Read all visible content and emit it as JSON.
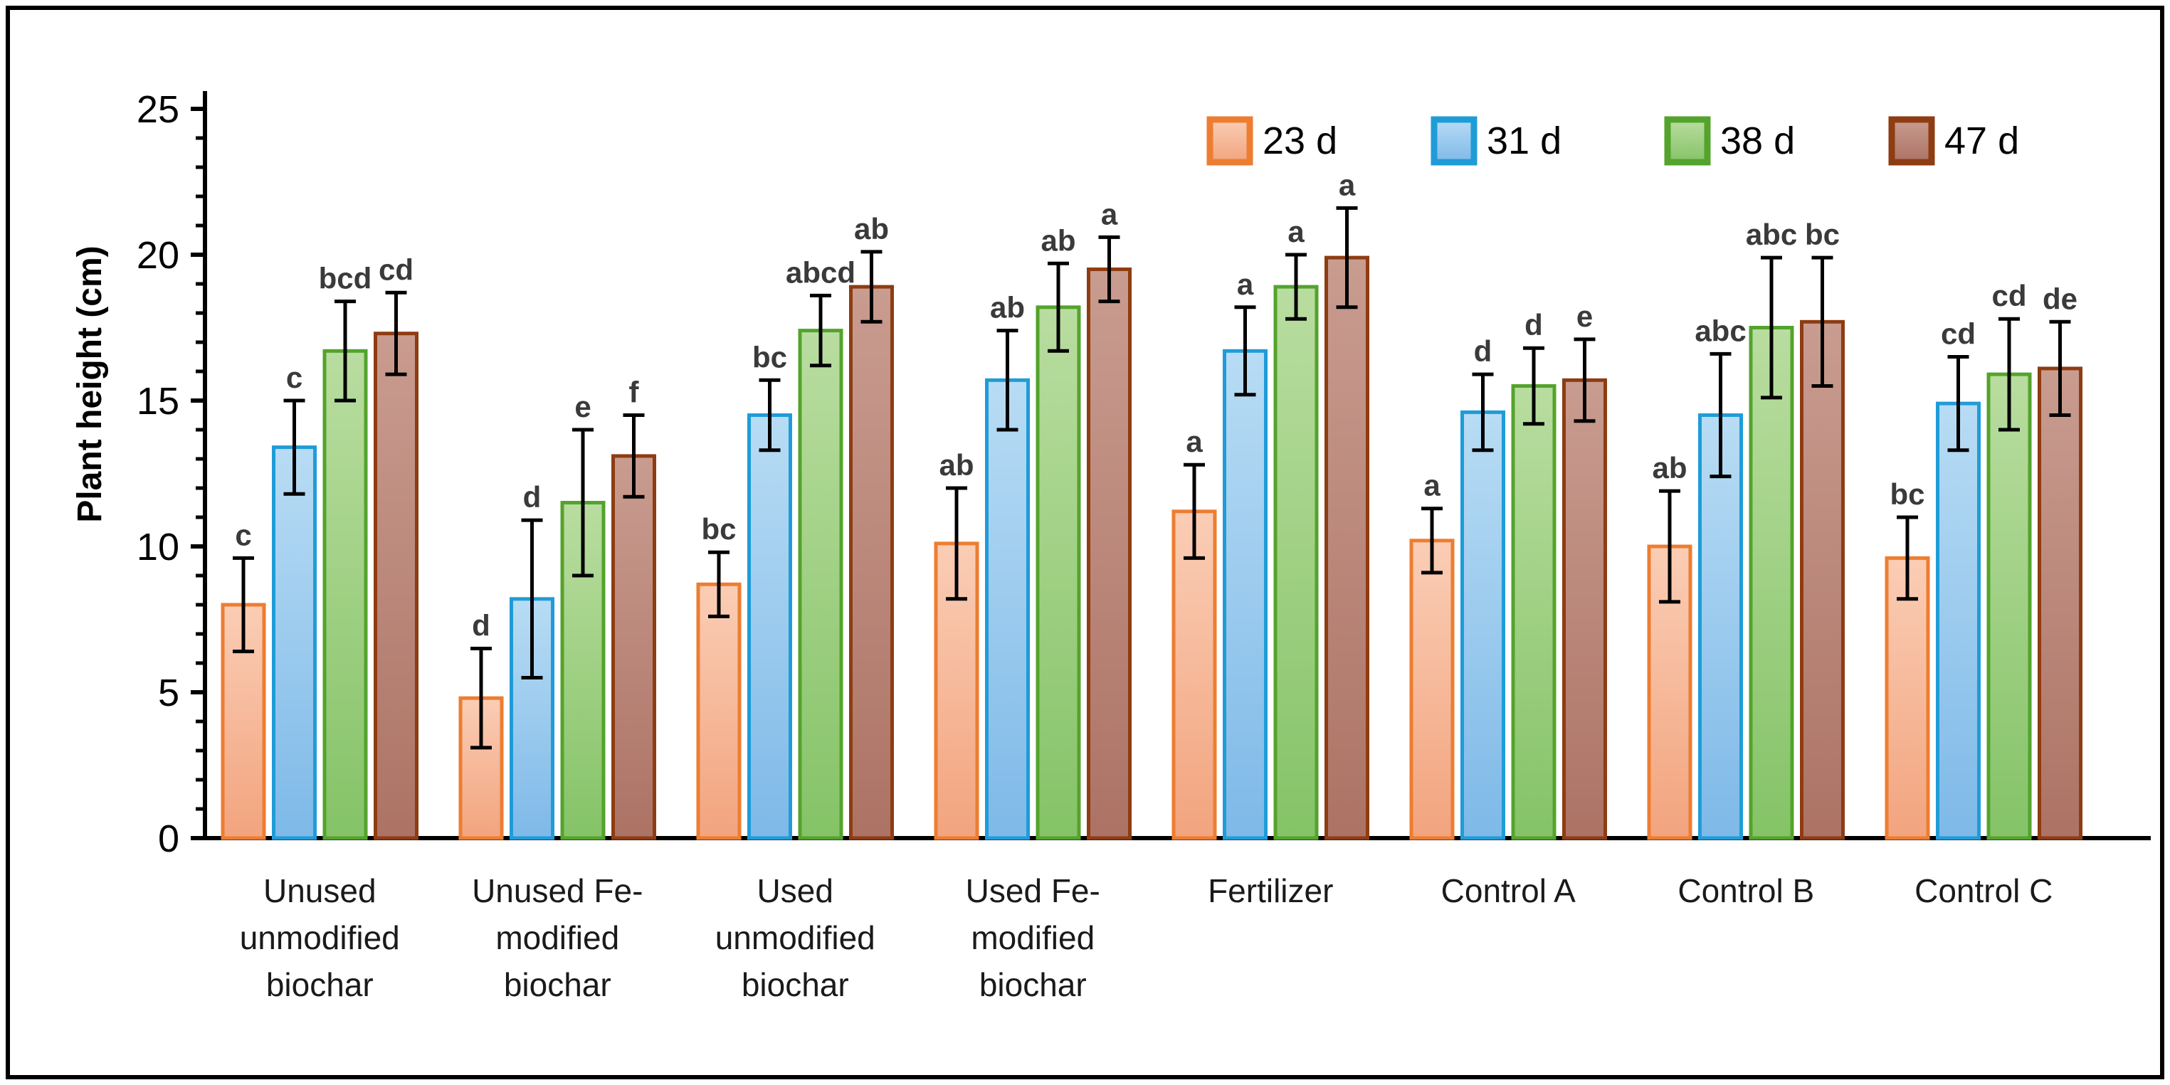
{
  "figure": {
    "background_color": "#ffffff",
    "frame_color": "#000000"
  },
  "chart_data": {
    "type": "bar",
    "title": "",
    "xlabel": "",
    "ylabel": "Plant height (cm)",
    "ylim": [
      0,
      25
    ],
    "yticks": [
      0,
      5,
      10,
      15,
      20,
      25
    ],
    "minor_tick_step": 1,
    "grid": false,
    "legend_position": "top-right",
    "error_bars": true,
    "categories": [
      "Unused unmodified biochar",
      "Unused Fe-modified biochar",
      "Used unmodified biochar",
      "Used Fe-modified biochar",
      "Fertilizer",
      "Control A",
      "Control B",
      "Control C"
    ],
    "categories_display": [
      [
        "Unused",
        "unmodified",
        "biochar"
      ],
      [
        "Unused Fe-",
        "modified",
        "biochar"
      ],
      [
        "Used",
        "unmodified",
        "biochar"
      ],
      [
        "Used Fe-",
        "modified",
        "biochar"
      ],
      [
        "Fertilizer"
      ],
      [
        "Control A"
      ],
      [
        "Control B"
      ],
      [
        "Control C"
      ]
    ],
    "series": [
      {
        "name": "23 d",
        "color": "#ED7D31",
        "fill_top": "#FACDB5",
        "fill_bottom": "#F2A47E",
        "values": [
          8.0,
          4.8,
          8.7,
          10.1,
          11.2,
          10.2,
          10.0,
          9.6
        ],
        "errors": [
          1.6,
          1.7,
          1.1,
          1.9,
          1.6,
          1.1,
          1.9,
          1.4
        ],
        "letters": [
          "c",
          "d",
          "bc",
          "ab",
          "a",
          "a",
          "ab",
          "bc"
        ]
      },
      {
        "name": "31 d",
        "color": "#1F9CD8",
        "fill_top": "#B8DCF4",
        "fill_bottom": "#7EB9E8",
        "values": [
          13.4,
          8.2,
          14.5,
          15.7,
          16.7,
          14.6,
          14.5,
          14.9
        ],
        "errors": [
          1.6,
          2.7,
          1.2,
          1.7,
          1.5,
          1.3,
          2.1,
          1.6
        ],
        "letters": [
          "c",
          "d",
          "bc",
          "ab",
          "a",
          "d",
          "abc",
          "cd"
        ]
      },
      {
        "name": "38 d",
        "color": "#54A32C",
        "fill_top": "#B9DDA0",
        "fill_bottom": "#85C367",
        "values": [
          16.7,
          11.5,
          17.4,
          18.2,
          18.9,
          15.5,
          17.5,
          15.9
        ],
        "errors": [
          1.7,
          2.5,
          1.2,
          1.5,
          1.1,
          1.3,
          2.4,
          1.9
        ],
        "letters": [
          "bcd",
          "e",
          "abcd",
          "ab",
          "a",
          "d",
          "abc",
          "cd"
        ]
      },
      {
        "name": "47 d",
        "color": "#8E3C12",
        "fill_top": "#C99C90",
        "fill_bottom": "#AC7365",
        "values": [
          17.3,
          13.1,
          18.9,
          19.5,
          19.9,
          15.7,
          17.7,
          16.1
        ],
        "errors": [
          1.4,
          1.4,
          1.2,
          1.1,
          1.7,
          1.4,
          2.2,
          1.6
        ],
        "letters": [
          "cd",
          "f",
          "ab",
          "a",
          "a",
          "e",
          "bc",
          "de"
        ]
      }
    ]
  }
}
